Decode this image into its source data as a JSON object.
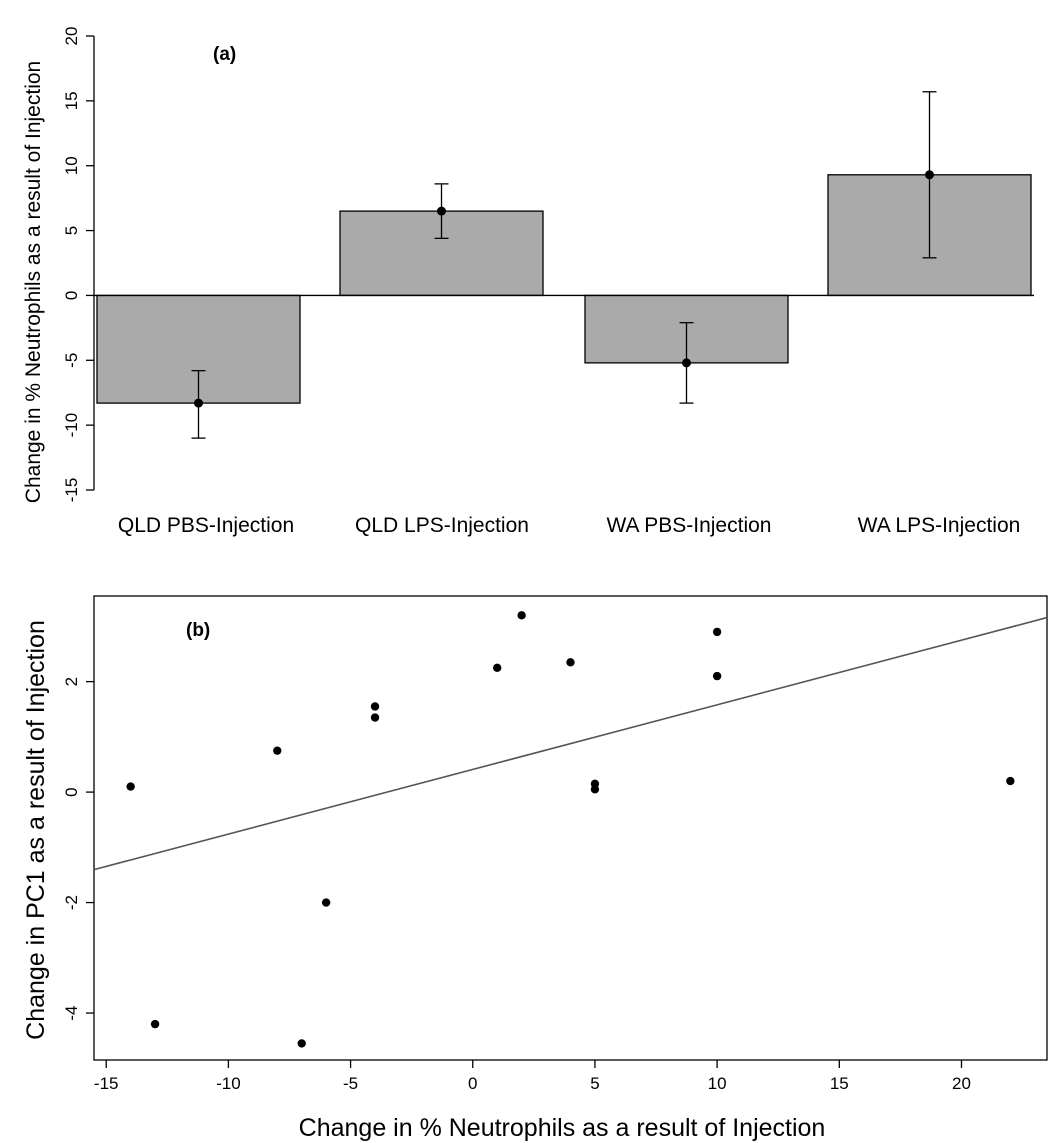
{
  "chart_data": [
    {
      "type": "bar",
      "panel_label": "(a)",
      "categories": [
        "QLD PBS-Injection",
        "QLD LPS-Injection",
        "WA PBS-Injection",
        "WA LPS-Injection"
      ],
      "values": [
        -8.3,
        6.5,
        -5.2,
        9.3
      ],
      "error_low": [
        -11.0,
        4.4,
        -8.3,
        2.9
      ],
      "error_high": [
        -5.8,
        8.6,
        -2.1,
        15.7
      ],
      "ylabel": "Change in % Neutrophils as a result of Injection",
      "xlabel": "",
      "ylim": [
        -15,
        20
      ],
      "yticks": [
        -15,
        -10,
        -5,
        0,
        5,
        10,
        15,
        20
      ],
      "bar_color": "#aaaaaa",
      "grid": false
    },
    {
      "type": "scatter",
      "panel_label": "(b)",
      "points": [
        {
          "x": -14,
          "y": 0.1
        },
        {
          "x": -13,
          "y": -4.2
        },
        {
          "x": -8,
          "y": 0.75
        },
        {
          "x": -7,
          "y": -4.55
        },
        {
          "x": -6,
          "y": -2.0
        },
        {
          "x": -4,
          "y": 1.55
        },
        {
          "x": -4,
          "y": 1.35
        },
        {
          "x": 1,
          "y": 2.25
        },
        {
          "x": 2,
          "y": 3.2
        },
        {
          "x": 4,
          "y": 2.35
        },
        {
          "x": 5,
          "y": 0.15
        },
        {
          "x": 5,
          "y": 0.05
        },
        {
          "x": 10,
          "y": 2.9
        },
        {
          "x": 10,
          "y": 2.1
        },
        {
          "x": 22,
          "y": 0.2
        }
      ],
      "fit_line": {
        "intercept": 0.41,
        "slope": 0.117
      },
      "xlabel": "Change in % Neutrophils as a result of Injection",
      "ylabel": "Change in PC1 as a result of Injection",
      "xlim": [
        -15.5,
        23.5
      ],
      "ylim": [
        -4.85,
        3.55
      ],
      "xticks": [
        -15,
        -10,
        -5,
        0,
        5,
        10,
        15,
        20
      ],
      "yticks": [
        -4,
        -2,
        0,
        2
      ],
      "grid": false
    }
  ]
}
